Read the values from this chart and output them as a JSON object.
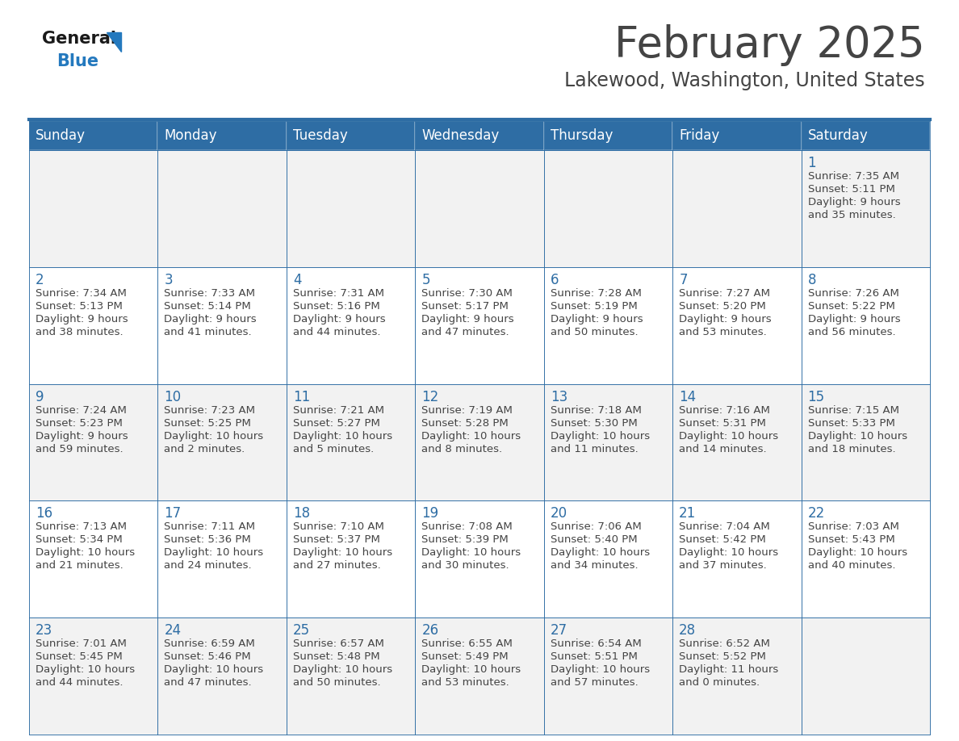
{
  "title": "February 2025",
  "subtitle": "Lakewood, Washington, United States",
  "days_of_week": [
    "Sunday",
    "Monday",
    "Tuesday",
    "Wednesday",
    "Thursday",
    "Friday",
    "Saturday"
  ],
  "header_bg": "#2E6DA4",
  "header_text": "#FFFFFF",
  "cell_bg_odd": "#F2F2F2",
  "cell_bg_even": "#FFFFFF",
  "border_color": "#2E6DA4",
  "text_color": "#444444",
  "day_num_color": "#2E6DA4",
  "separator_color": "#2E6DA4",
  "calendar_data": [
    [
      null,
      null,
      null,
      null,
      null,
      null,
      {
        "day": "1",
        "sunrise": "7:35 AM",
        "sunset": "5:11 PM",
        "daylight1": "9 hours",
        "daylight2": "and 35 minutes."
      }
    ],
    [
      {
        "day": "2",
        "sunrise": "7:34 AM",
        "sunset": "5:13 PM",
        "daylight1": "9 hours",
        "daylight2": "and 38 minutes."
      },
      {
        "day": "3",
        "sunrise": "7:33 AM",
        "sunset": "5:14 PM",
        "daylight1": "9 hours",
        "daylight2": "and 41 minutes."
      },
      {
        "day": "4",
        "sunrise": "7:31 AM",
        "sunset": "5:16 PM",
        "daylight1": "9 hours",
        "daylight2": "and 44 minutes."
      },
      {
        "day": "5",
        "sunrise": "7:30 AM",
        "sunset": "5:17 PM",
        "daylight1": "9 hours",
        "daylight2": "and 47 minutes."
      },
      {
        "day": "6",
        "sunrise": "7:28 AM",
        "sunset": "5:19 PM",
        "daylight1": "9 hours",
        "daylight2": "and 50 minutes."
      },
      {
        "day": "7",
        "sunrise": "7:27 AM",
        "sunset": "5:20 PM",
        "daylight1": "9 hours",
        "daylight2": "and 53 minutes."
      },
      {
        "day": "8",
        "sunrise": "7:26 AM",
        "sunset": "5:22 PM",
        "daylight1": "9 hours",
        "daylight2": "and 56 minutes."
      }
    ],
    [
      {
        "day": "9",
        "sunrise": "7:24 AM",
        "sunset": "5:23 PM",
        "daylight1": "9 hours",
        "daylight2": "and 59 minutes."
      },
      {
        "day": "10",
        "sunrise": "7:23 AM",
        "sunset": "5:25 PM",
        "daylight1": "10 hours",
        "daylight2": "and 2 minutes."
      },
      {
        "day": "11",
        "sunrise": "7:21 AM",
        "sunset": "5:27 PM",
        "daylight1": "10 hours",
        "daylight2": "and 5 minutes."
      },
      {
        "day": "12",
        "sunrise": "7:19 AM",
        "sunset": "5:28 PM",
        "daylight1": "10 hours",
        "daylight2": "and 8 minutes."
      },
      {
        "day": "13",
        "sunrise": "7:18 AM",
        "sunset": "5:30 PM",
        "daylight1": "10 hours",
        "daylight2": "and 11 minutes."
      },
      {
        "day": "14",
        "sunrise": "7:16 AM",
        "sunset": "5:31 PM",
        "daylight1": "10 hours",
        "daylight2": "and 14 minutes."
      },
      {
        "day": "15",
        "sunrise": "7:15 AM",
        "sunset": "5:33 PM",
        "daylight1": "10 hours",
        "daylight2": "and 18 minutes."
      }
    ],
    [
      {
        "day": "16",
        "sunrise": "7:13 AM",
        "sunset": "5:34 PM",
        "daylight1": "10 hours",
        "daylight2": "and 21 minutes."
      },
      {
        "day": "17",
        "sunrise": "7:11 AM",
        "sunset": "5:36 PM",
        "daylight1": "10 hours",
        "daylight2": "and 24 minutes."
      },
      {
        "day": "18",
        "sunrise": "7:10 AM",
        "sunset": "5:37 PM",
        "daylight1": "10 hours",
        "daylight2": "and 27 minutes."
      },
      {
        "day": "19",
        "sunrise": "7:08 AM",
        "sunset": "5:39 PM",
        "daylight1": "10 hours",
        "daylight2": "and 30 minutes."
      },
      {
        "day": "20",
        "sunrise": "7:06 AM",
        "sunset": "5:40 PM",
        "daylight1": "10 hours",
        "daylight2": "and 34 minutes."
      },
      {
        "day": "21",
        "sunrise": "7:04 AM",
        "sunset": "5:42 PM",
        "daylight1": "10 hours",
        "daylight2": "and 37 minutes."
      },
      {
        "day": "22",
        "sunrise": "7:03 AM",
        "sunset": "5:43 PM",
        "daylight1": "10 hours",
        "daylight2": "and 40 minutes."
      }
    ],
    [
      {
        "day": "23",
        "sunrise": "7:01 AM",
        "sunset": "5:45 PM",
        "daylight1": "10 hours",
        "daylight2": "and 44 minutes."
      },
      {
        "day": "24",
        "sunrise": "6:59 AM",
        "sunset": "5:46 PM",
        "daylight1": "10 hours",
        "daylight2": "and 47 minutes."
      },
      {
        "day": "25",
        "sunrise": "6:57 AM",
        "sunset": "5:48 PM",
        "daylight1": "10 hours",
        "daylight2": "and 50 minutes."
      },
      {
        "day": "26",
        "sunrise": "6:55 AM",
        "sunset": "5:49 PM",
        "daylight1": "10 hours",
        "daylight2": "and 53 minutes."
      },
      {
        "day": "27",
        "sunrise": "6:54 AM",
        "sunset": "5:51 PM",
        "daylight1": "10 hours",
        "daylight2": "and 57 minutes."
      },
      {
        "day": "28",
        "sunrise": "6:52 AM",
        "sunset": "5:52 PM",
        "daylight1": "11 hours",
        "daylight2": "and 0 minutes."
      },
      null
    ]
  ],
  "logo_general_color": "#1a1a1a",
  "logo_blue_color": "#2479BE",
  "fig_width": 11.88,
  "fig_height": 9.18,
  "dpi": 100
}
